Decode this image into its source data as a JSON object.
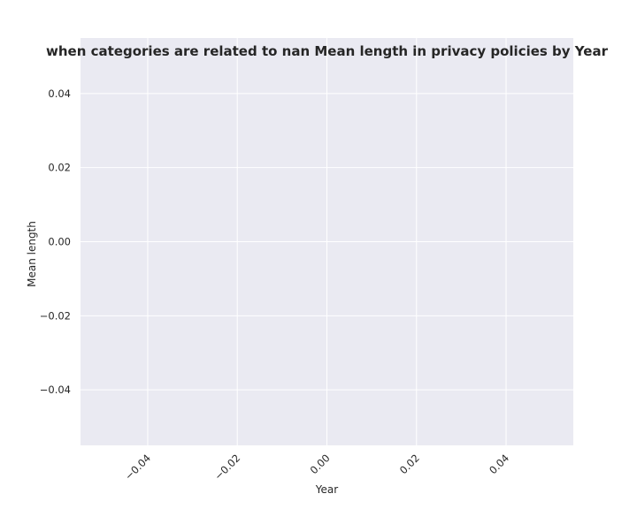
{
  "chart_data": {
    "type": "line",
    "title": "when categories are related to nan Mean length in privacy policies by Year",
    "xlabel": "Year",
    "ylabel": "Mean length",
    "x": [],
    "series": [],
    "xlim": [
      -0.055,
      0.055
    ],
    "ylim": [
      -0.055,
      0.055
    ],
    "xticks": [
      -0.04,
      -0.02,
      0.0,
      0.02,
      0.04
    ],
    "xtick_labels": [
      "−0.04",
      "−0.02",
      "0.00",
      "0.02",
      "0.04"
    ],
    "yticks": [
      0.04,
      0.02,
      0.0,
      -0.02,
      -0.04
    ],
    "ytick_labels": [
      "0.04",
      "0.02",
      "0.00",
      "−0.02",
      "−0.04"
    ],
    "grid": true,
    "legend": "none"
  },
  "colors": {
    "plot_background": "#eaeaf2",
    "grid": "#ffffff",
    "text": "#262626"
  }
}
